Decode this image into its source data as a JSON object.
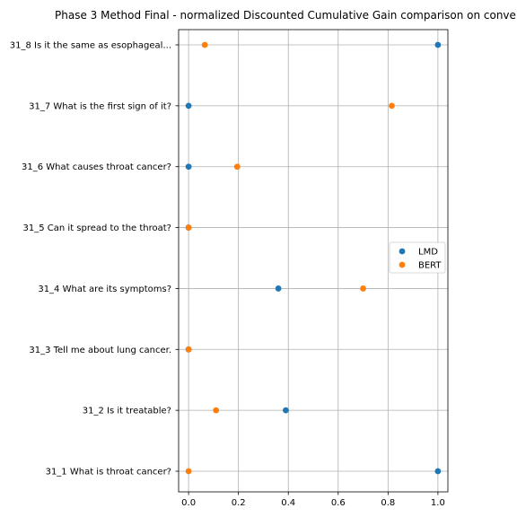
{
  "chart_data": {
    "type": "scatter",
    "title": "Phase 3 Method Final - normalized Discounted Cumulative Gain comparison on conve",
    "xlabel": "",
    "ylabel": "",
    "xlim": [
      -0.04,
      1.04
    ],
    "xticks": [
      0.0,
      0.2,
      0.4,
      0.6,
      0.8,
      1.0
    ],
    "x_tick_labels": [
      "0.0",
      "0.2",
      "0.4",
      "0.6",
      "0.8",
      "1.0"
    ],
    "categories": [
      "31_1 What is throat cancer?",
      "31_2 Is it treatable?",
      "31_3 Tell me about lung cancer.",
      "31_4 What are its symptoms?",
      "31_5 Can it spread to the throat?",
      "31_6 What causes throat cancer?",
      "31_7 What is the first sign of it?",
      "31_8 Is it the same as esophageal..."
    ],
    "grid": true,
    "legend_position": "center-right",
    "series": [
      {
        "name": "LMD",
        "color": "#1f77b4",
        "values": [
          1.0,
          0.39,
          0.0,
          0.36,
          0.0,
          0.0,
          0.0,
          1.0
        ]
      },
      {
        "name": "BERT",
        "color": "#ff7f0e",
        "values": [
          0.0,
          0.11,
          0.0,
          0.7,
          0.0,
          0.195,
          0.815,
          0.065
        ]
      }
    ]
  }
}
